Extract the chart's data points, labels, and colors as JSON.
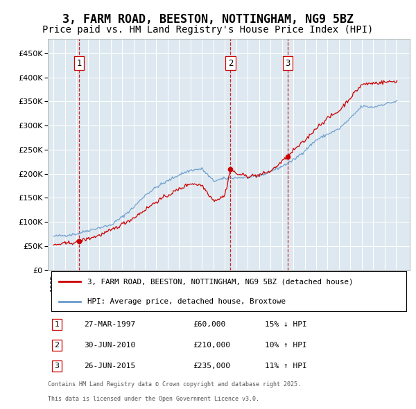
{
  "title": "3, FARM ROAD, BEESTON, NOTTINGHAM, NG9 5BZ",
  "subtitle": "Price paid vs. HM Land Registry's House Price Index (HPI)",
  "legend_line1": "3, FARM ROAD, BEESTON, NOTTINGHAM, NG9 5BZ (detached house)",
  "legend_line2": "HPI: Average price, detached house, Broxtowe",
  "footer_line1": "Contains HM Land Registry data © Crown copyright and database right 2025.",
  "footer_line2": "This data is licensed under the Open Government Licence v3.0.",
  "transactions": [
    {
      "num": 1,
      "date": "27-MAR-1997",
      "price": 60000,
      "hpi_diff": "15% ↓ HPI"
    },
    {
      "num": 2,
      "date": "30-JUN-2010",
      "price": 210000,
      "hpi_diff": "10% ↑ HPI"
    },
    {
      "num": 3,
      "date": "26-JUN-2015",
      "price": 235000,
      "hpi_diff": "11% ↑ HPI"
    }
  ],
  "transaction_dates_decimal": [
    1997.23,
    2010.5,
    2015.5
  ],
  "transaction_prices": [
    60000,
    210000,
    235000
  ],
  "red_line_color": "#cc0000",
  "blue_line_color": "#6699cc",
  "background_color": "#dde8f0",
  "plot_bg_color": "#dde8f0",
  "grid_color": "#ffffff",
  "vline_color": "#cc0000",
  "marker_color": "#cc0000",
  "ylim": [
    0,
    480000
  ],
  "yticks": [
    0,
    50000,
    100000,
    150000,
    200000,
    250000,
    300000,
    350000,
    400000,
    450000
  ],
  "xlim_start": 1994.5,
  "xlim_end": 2026.2,
  "title_fontsize": 12,
  "subtitle_fontsize": 10
}
